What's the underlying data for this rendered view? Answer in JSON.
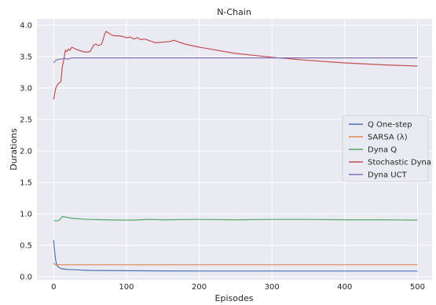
{
  "chart_data": {
    "type": "line",
    "title": "N-Chain",
    "xlabel": "Episodes",
    "ylabel": "Durations",
    "xlim": [
      -23,
      520
    ],
    "ylim": [
      -0.05,
      4.1
    ],
    "xticks": [
      0,
      100,
      200,
      300,
      400,
      500
    ],
    "yticks": [
      0.0,
      0.5,
      1.0,
      1.5,
      2.0,
      2.5,
      3.0,
      3.5,
      4.0
    ],
    "xtick_labels": [
      "0",
      "100",
      "200",
      "300",
      "400",
      "500"
    ],
    "ytick_labels": [
      "0.0",
      "0.5",
      "1.0",
      "1.5",
      "2.0",
      "2.5",
      "3.0",
      "3.5",
      "4.0"
    ],
    "grid": true,
    "legend_position": "center-right",
    "colors": {
      "background": "#eaeaf2",
      "grid": "#ffffff"
    },
    "series": [
      {
        "name": "Q One-step",
        "color": "#4c72b0",
        "x": [
          0,
          1,
          2,
          3,
          4,
          5,
          7,
          10,
          15,
          20,
          30,
          50,
          100,
          150,
          200,
          300,
          400,
          500
        ],
        "y": [
          0.58,
          0.45,
          0.33,
          0.25,
          0.2,
          0.17,
          0.15,
          0.13,
          0.12,
          0.115,
          0.11,
          0.1,
          0.095,
          0.092,
          0.09,
          0.09,
          0.09,
          0.09
        ]
      },
      {
        "name": "SARSA (λ)",
        "color": "#dd8452",
        "x": [
          0,
          2,
          4,
          500
        ],
        "y": [
          0.22,
          0.19,
          0.19,
          0.19
        ]
      },
      {
        "name": "Dyna Q",
        "color": "#55a868",
        "x": [
          0,
          5,
          8,
          10,
          12,
          15,
          20,
          25,
          30,
          40,
          50,
          70,
          100,
          110,
          120,
          130,
          150,
          200,
          250,
          300,
          350,
          400,
          450,
          500
        ],
        "y": [
          0.89,
          0.89,
          0.9,
          0.93,
          0.96,
          0.95,
          0.94,
          0.93,
          0.925,
          0.915,
          0.91,
          0.905,
          0.9,
          0.9,
          0.905,
          0.91,
          0.905,
          0.91,
          0.905,
          0.91,
          0.91,
          0.905,
          0.905,
          0.9
        ]
      },
      {
        "name": "Stochastic Dyna",
        "color": "#c44e52",
        "x": [
          0,
          2,
          3,
          5,
          7,
          10,
          12,
          14,
          16,
          18,
          20,
          22,
          25,
          30,
          35,
          40,
          45,
          50,
          55,
          58,
          60,
          63,
          66,
          70,
          72,
          75,
          80,
          85,
          90,
          95,
          100,
          105,
          110,
          115,
          120,
          125,
          130,
          135,
          140,
          150,
          160,
          165,
          170,
          180,
          200,
          250,
          300,
          350,
          400,
          450,
          500
        ],
        "y": [
          2.82,
          2.95,
          3.0,
          3.05,
          3.08,
          3.1,
          3.35,
          3.45,
          3.6,
          3.58,
          3.62,
          3.6,
          3.65,
          3.62,
          3.6,
          3.58,
          3.57,
          3.58,
          3.68,
          3.7,
          3.68,
          3.68,
          3.7,
          3.85,
          3.9,
          3.88,
          3.84,
          3.83,
          3.83,
          3.82,
          3.8,
          3.81,
          3.78,
          3.8,
          3.77,
          3.78,
          3.76,
          3.74,
          3.72,
          3.73,
          3.74,
          3.76,
          3.74,
          3.7,
          3.65,
          3.55,
          3.49,
          3.44,
          3.4,
          3.37,
          3.35
        ]
      },
      {
        "name": "Dyna UCT",
        "color": "#8172b3",
        "x": [
          0,
          2,
          4,
          6,
          8,
          10,
          15,
          20,
          25,
          30,
          50,
          100,
          200,
          300,
          400,
          500
        ],
        "y": [
          3.4,
          3.43,
          3.45,
          3.45,
          3.46,
          3.46,
          3.47,
          3.46,
          3.48,
          3.48,
          3.48,
          3.48,
          3.48,
          3.48,
          3.48,
          3.48
        ]
      }
    ]
  }
}
